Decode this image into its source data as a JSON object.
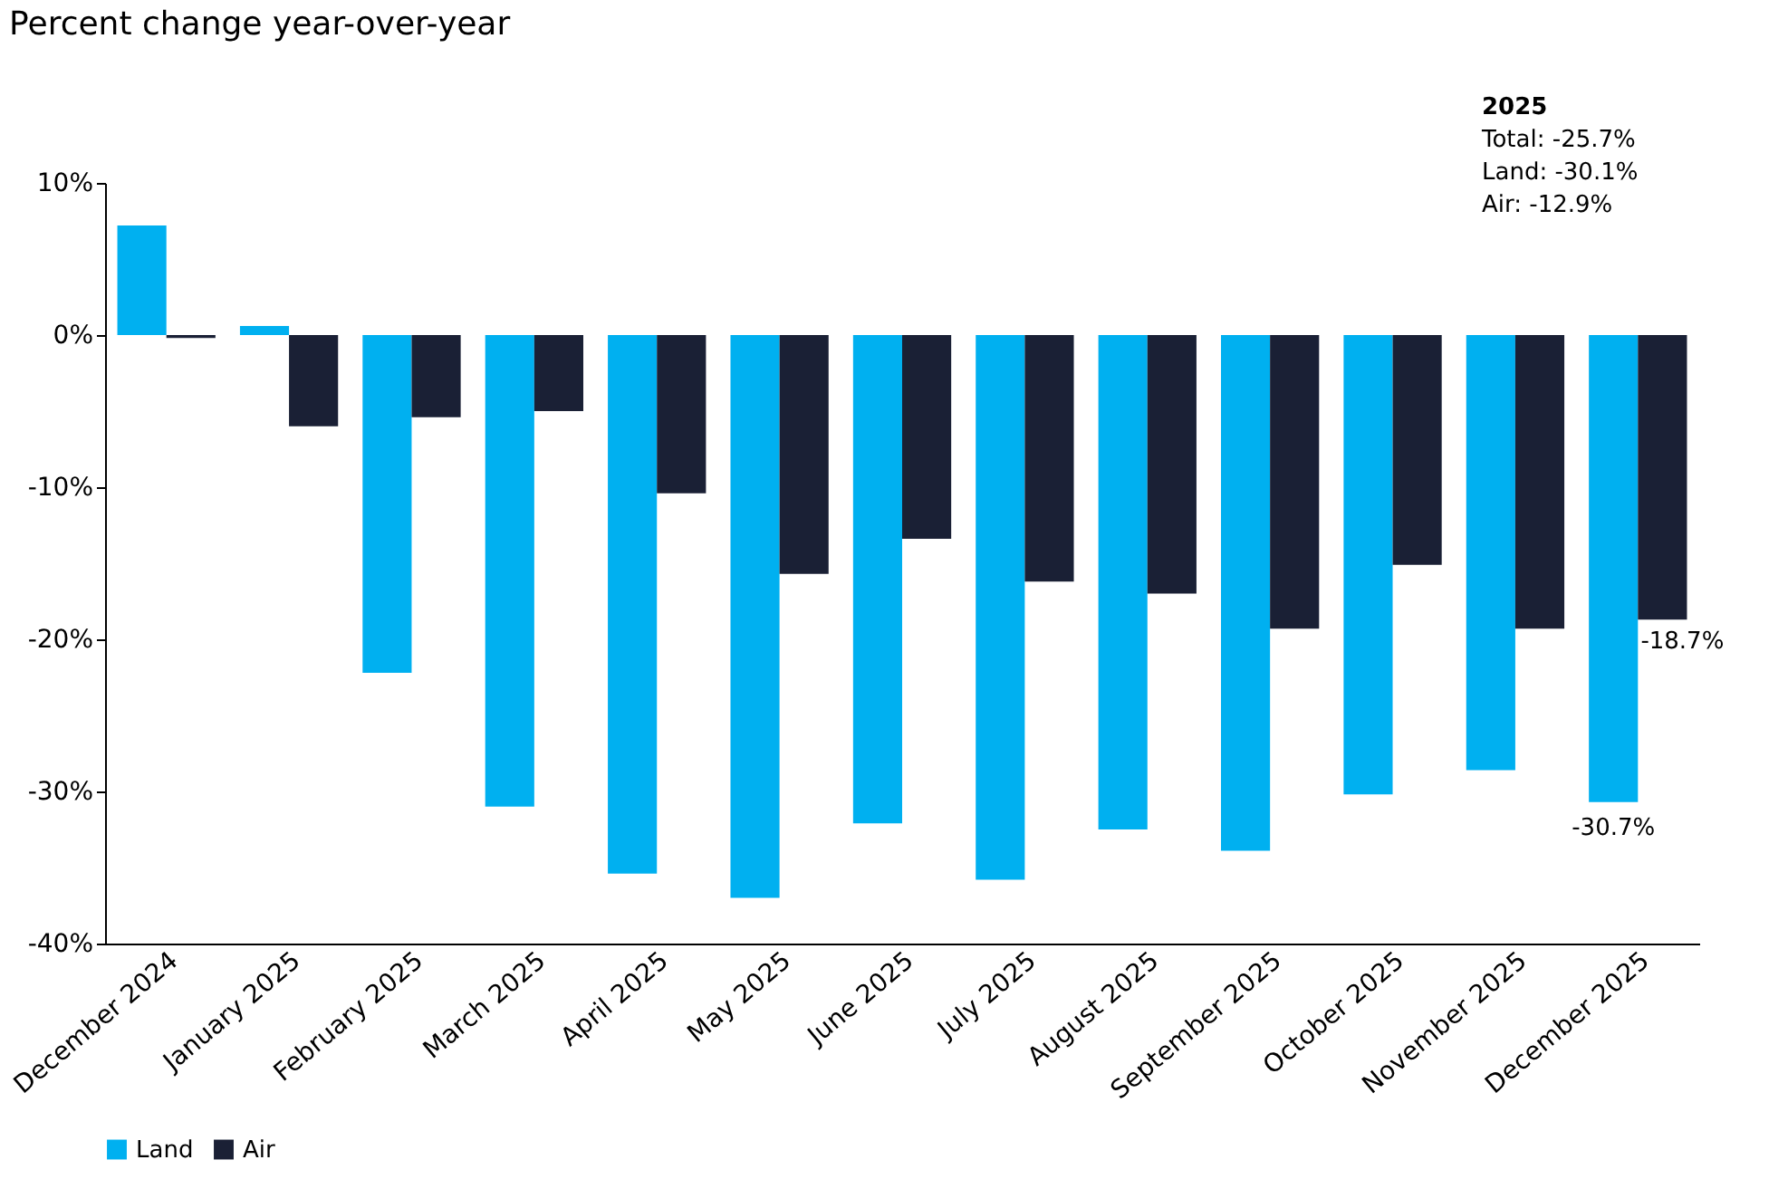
{
  "chart_data": {
    "type": "bar",
    "title": "Percent change year-over-year",
    "categories": [
      "December 2024",
      "January 2025",
      "February 2025",
      "March 2025",
      "April 2025",
      "May 2025",
      "June 2025",
      "July 2025",
      "August 2025",
      "September 2025",
      "October 2025",
      "November 2025",
      "December 2025"
    ],
    "series": [
      {
        "name": "Land",
        "color": "#00b0f0",
        "values": [
          7.2,
          0.6,
          -22.2,
          -31.0,
          -35.4,
          -37.0,
          -32.1,
          -35.8,
          -32.5,
          -33.9,
          -30.2,
          -28.6,
          -30.7
        ],
        "value_labels": [
          null,
          null,
          null,
          null,
          null,
          null,
          null,
          null,
          null,
          null,
          null,
          null,
          "-30.7%"
        ]
      },
      {
        "name": "Air",
        "color": "#1a2035",
        "values": [
          -0.2,
          -6.0,
          -5.4,
          -5.0,
          -10.4,
          -15.7,
          -13.4,
          -16.2,
          -17.0,
          -19.3,
          -15.1,
          -19.3,
          -18.7
        ],
        "value_labels": [
          null,
          null,
          null,
          null,
          null,
          null,
          null,
          null,
          null,
          null,
          null,
          null,
          "-18.7%"
        ]
      }
    ],
    "ylim": [
      -40,
      10
    ],
    "yticks": [
      {
        "value": -40,
        "label": "-40%"
      },
      {
        "value": -30,
        "label": "-30%"
      },
      {
        "value": -20,
        "label": "-20%"
      },
      {
        "value": -10,
        "label": "-10%"
      },
      {
        "value": 0,
        "label": "0%"
      },
      {
        "value": 10,
        "label": "10%"
      }
    ],
    "annotations": [
      "2025",
      "Total: -25.7%",
      "Land: -30.1%",
      "Air: -12.9%"
    ],
    "legend": "bottom",
    "grid": false
  }
}
